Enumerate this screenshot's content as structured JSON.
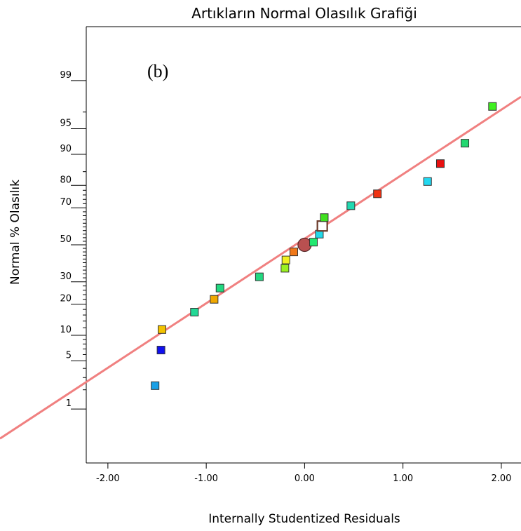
{
  "chart_data": {
    "type": "scatter",
    "title": "Artıkların Normal Olasılık Grafiği",
    "panel_label": "(b)",
    "xlabel": "Internally Studentized Residuals",
    "ylabel": "Normal % Olasılık",
    "xlim": [
      -2.22,
      2.2
    ],
    "ylim_probability_percent": [
      0.1,
      99.9
    ],
    "y_scale": "normal-probability",
    "grid": false,
    "x_ticks": [
      {
        "value": -2,
        "label": "-2.00"
      },
      {
        "value": -1,
        "label": "-1.00"
      },
      {
        "value": 0,
        "label": "0.00"
      },
      {
        "value": 1,
        "label": "1.00"
      },
      {
        "value": 2,
        "label": "2.00"
      }
    ],
    "y_ticks_labeled": [
      {
        "value": 1,
        "label": "1"
      },
      {
        "value": 5,
        "label": "5"
      },
      {
        "value": 10,
        "label": "10"
      },
      {
        "value": 20,
        "label": "20"
      },
      {
        "value": 30,
        "label": "30"
      },
      {
        "value": 50,
        "label": "50"
      },
      {
        "value": 70,
        "label": "70"
      },
      {
        "value": 80,
        "label": "80"
      },
      {
        "value": 90,
        "label": "90"
      },
      {
        "value": 95,
        "label": "95"
      },
      {
        "value": 99,
        "label": "99"
      }
    ],
    "y_ticks_minor": [
      2,
      3,
      4,
      6,
      7,
      8,
      9,
      12,
      14,
      16,
      18,
      22,
      24,
      26,
      28,
      32,
      34,
      36,
      38,
      40,
      42,
      44,
      46,
      48,
      52,
      54,
      56,
      58,
      60,
      62,
      64,
      66,
      68,
      72,
      74,
      76,
      78,
      85,
      97
    ],
    "reference_line": {
      "color": "#f08080",
      "points": [
        {
          "x": -2.22,
          "y": 2.6
        },
        {
          "x": 2.2,
          "y": 98.2
        }
      ]
    },
    "points": [
      {
        "x": -1.52,
        "y": 2.3,
        "color": "#1aa0e6",
        "marker": "square"
      },
      {
        "x": -1.46,
        "y": 6.8,
        "color": "#1010f0",
        "marker": "square"
      },
      {
        "x": -1.45,
        "y": 11.5,
        "color": "#f2c200",
        "marker": "square"
      },
      {
        "x": -1.12,
        "y": 17.0,
        "color": "#22d895",
        "marker": "square"
      },
      {
        "x": -0.92,
        "y": 22.0,
        "color": "#f0a800",
        "marker": "square"
      },
      {
        "x": -0.86,
        "y": 27.0,
        "color": "#22d880",
        "marker": "square"
      },
      {
        "x": -0.46,
        "y": 32.5,
        "color": "#22d880",
        "marker": "square"
      },
      {
        "x": -0.2,
        "y": 37.0,
        "color": "#9af020",
        "marker": "square"
      },
      {
        "x": -0.19,
        "y": 41.5,
        "color": "#f0f020",
        "marker": "square"
      },
      {
        "x": -0.11,
        "y": 46.0,
        "color": "#f07818",
        "marker": "square"
      },
      {
        "x": 0.0,
        "y": 50.0,
        "color": "#b95050",
        "marker": "circle"
      },
      {
        "x": 0.09,
        "y": 51.5,
        "color": "#22e870",
        "marker": "square"
      },
      {
        "x": 0.15,
        "y": 56.0,
        "color": "#22d8e8",
        "marker": "square"
      },
      {
        "x": 0.18,
        "y": 60.5,
        "color": "#ffffff",
        "marker": "square-hollow"
      },
      {
        "x": 0.2,
        "y": 65.0,
        "color": "#40e020",
        "marker": "square"
      },
      {
        "x": 0.47,
        "y": 71.0,
        "color": "#22d8b0",
        "marker": "square"
      },
      {
        "x": 0.74,
        "y": 76.5,
        "color": "#f03010",
        "marker": "square"
      },
      {
        "x": 1.25,
        "y": 81.5,
        "color": "#22d8f0",
        "marker": "square"
      },
      {
        "x": 1.38,
        "y": 87.5,
        "color": "#e81010",
        "marker": "square"
      },
      {
        "x": 1.63,
        "y": 92.5,
        "color": "#22d870",
        "marker": "square"
      },
      {
        "x": 1.91,
        "y": 97.5,
        "color": "#40f020",
        "marker": "square"
      }
    ]
  }
}
